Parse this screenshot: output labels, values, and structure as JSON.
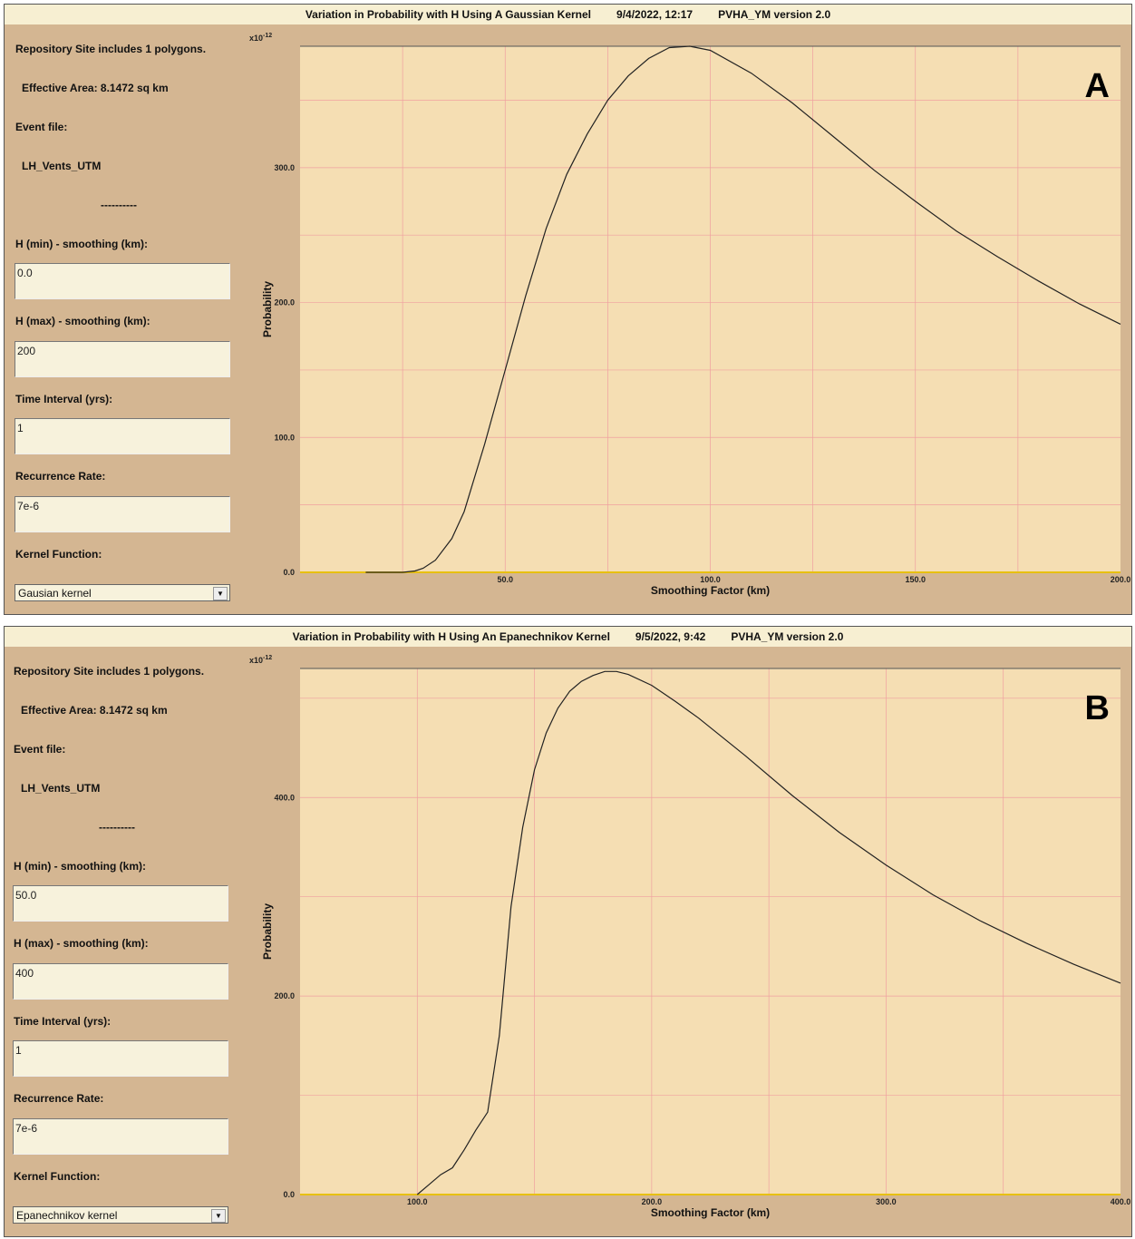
{
  "panels": [
    {
      "id": "A",
      "title": "Variation in Probability with H Using A Gaussian Kernel",
      "date": "9/4/2022, 12:17",
      "version": "PVHA_YM version 2.0",
      "badge": "A",
      "side": {
        "repository": "Repository Site includes 1 polygons.",
        "effective_area": "Effective Area: 8.1472 sq km",
        "event_file_label": "Event file:",
        "event_file": "LH_Vents_UTM",
        "separator": "----------",
        "hmin_label": "H (min) - smoothing (km):",
        "hmin_value": "0.0",
        "hmax_label": "H (max) - smoothing (km):",
        "hmax_value": "200",
        "time_label": "Time Interval (yrs):",
        "time_value": "1",
        "rate_label": "Recurrence Rate:",
        "rate_value": "7e-6",
        "kernel_label": "Kernel Function:",
        "kernel_value": "Gausian kernel"
      }
    },
    {
      "id": "B",
      "title": "Variation in Probability with H Using An Epanechnikov Kernel",
      "date": "9/5/2022, 9:42",
      "version": "PVHA_YM version 2.0",
      "badge": "B",
      "side": {
        "repository": "Repository Site includes 1 polygons.",
        "effective_area": "Effective Area: 8.1472 sq km",
        "event_file_label": "Event file:",
        "event_file": "LH_Vents_UTM",
        "separator": "----------",
        "hmin_label": "H (min) - smoothing (km):",
        "hmin_value": "50.0",
        "hmax_label": "H (max) - smoothing (km):",
        "hmax_value": "400",
        "time_label": "Time Interval (yrs):",
        "time_value": "1",
        "rate_label": "Recurrence Rate:",
        "rate_value": "7e-6",
        "kernel_label": "Kernel Function:",
        "kernel_value": "Epanechnikov kernel"
      }
    }
  ],
  "colors": {
    "panel_bg": "#d4b692",
    "plot_bg": "#f5deb3",
    "grid": "#f0a0a0",
    "curve": "#222222",
    "baseline": "#e8c010"
  },
  "chart_data": [
    {
      "type": "line",
      "xlabel": "Smoothing Factor  (km)",
      "ylabel": "Probability",
      "y_multiplier": "x10-12",
      "xlim": [
        0,
        200
      ],
      "ylim": [
        0,
        390
      ],
      "x_ticks": [
        "50.0",
        "100.0",
        "150.0",
        "200.0"
      ],
      "y_ticks": [
        "0.0",
        "100.0",
        "200.0",
        "300.0"
      ],
      "grid": true,
      "series": [
        {
          "x": [
            16,
            20,
            25,
            28,
            30,
            33,
            37,
            40,
            45,
            50,
            55,
            60,
            65,
            70,
            75,
            80,
            85,
            90,
            95,
            100,
            110,
            120,
            130,
            140,
            150,
            160,
            170,
            180,
            190,
            200
          ],
          "y": [
            0,
            0,
            0,
            1,
            3,
            9,
            25,
            45,
            95,
            150,
            205,
            255,
            295,
            325,
            350,
            368,
            381,
            389,
            390,
            387,
            370,
            348,
            323,
            298,
            275,
            253,
            234,
            216,
            199,
            184
          ]
        }
      ]
    },
    {
      "type": "line",
      "xlabel": "Smoothing Factor  (km)",
      "ylabel": "Probability",
      "y_multiplier": "x10-12",
      "xlim": [
        50,
        400
      ],
      "ylim": [
        0,
        530
      ],
      "x_ticks": [
        "100.0",
        "200.0",
        "300.0",
        "400.0"
      ],
      "y_ticks": [
        "0.0",
        "200.0",
        "400.0"
      ],
      "grid": true,
      "series": [
        {
          "x": [
            100,
            105,
            110,
            115,
            120,
            125,
            130,
            135,
            140,
            145,
            150,
            155,
            160,
            165,
            170,
            175,
            180,
            185,
            190,
            200,
            210,
            220,
            240,
            260,
            280,
            300,
            320,
            340,
            360,
            380,
            400
          ],
          "y": [
            0,
            10,
            20,
            27,
            45,
            65,
            83,
            160,
            290,
            370,
            428,
            465,
            490,
            507,
            517,
            523,
            527,
            527,
            524,
            513,
            497,
            480,
            442,
            402,
            365,
            332,
            302,
            276,
            253,
            232,
            213
          ]
        }
      ]
    }
  ]
}
